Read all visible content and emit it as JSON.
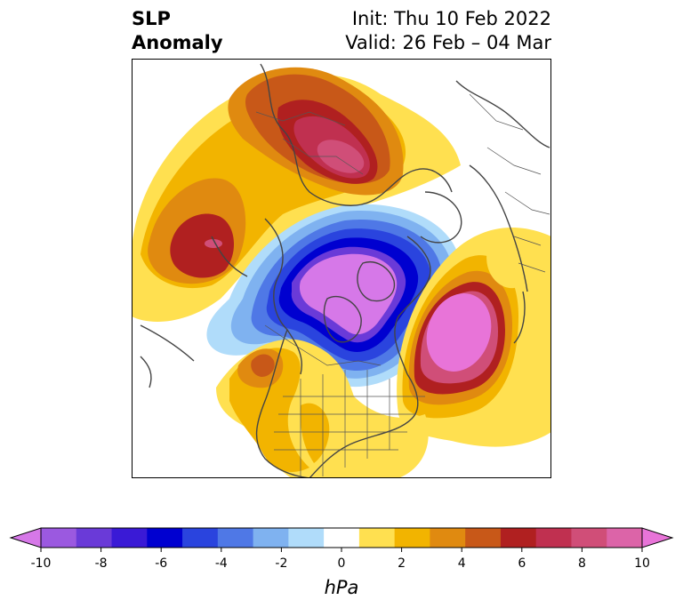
{
  "title": {
    "variable_line1": "SLP",
    "variable_line2": "Anomaly",
    "init": "Init: Thu 10 Feb 2022",
    "valid": "Valid: 26 Feb – 04 Mar"
  },
  "colorbar": {
    "unit": "hPa",
    "ticks": [
      "-10",
      "-8",
      "-6",
      "-4",
      "-2",
      "0",
      "2",
      "4",
      "6",
      "8",
      "10"
    ],
    "colors": [
      "#d678e8",
      "#9b59e0",
      "#6a3ad8",
      "#3a1ad6",
      "#0000d0",
      "#2a44de",
      "#4f78e6",
      "#7fb2f0",
      "#b0dcfa",
      "#ffffff",
      "#ffe050",
      "#f2b400",
      "#e08a10",
      "#c85818",
      "#b02020",
      "#c03050",
      "#d04e78",
      "#dc64a8",
      "#e874d8"
    ]
  },
  "map": {
    "projection": "polar stereographic, North America / Arctic",
    "features": [
      "coastlines",
      "country borders",
      "state and province borders"
    ]
  }
}
